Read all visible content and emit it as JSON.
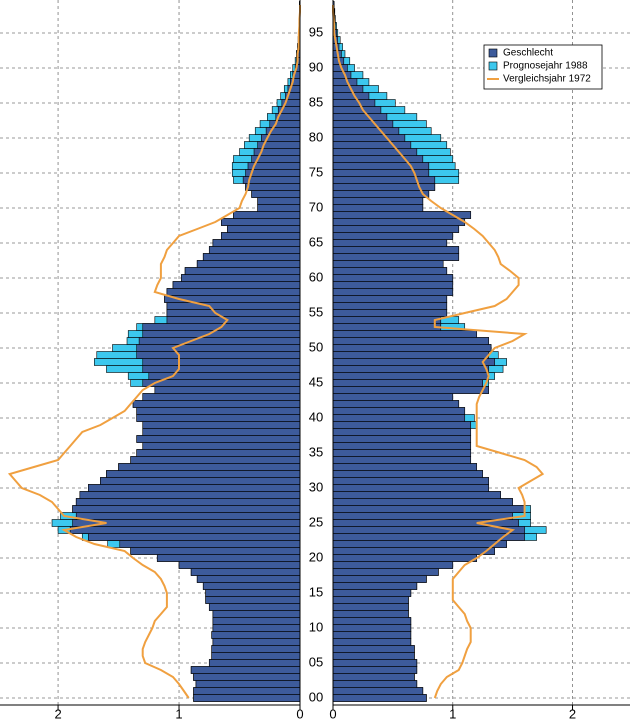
{
  "chart_data": {
    "type": "bar",
    "orientation": "horizontal",
    "legend": "upper right",
    "grid": true,
    "categories": [
      "00",
      null,
      null,
      null,
      null,
      "05",
      null,
      null,
      null,
      null,
      "10",
      null,
      null,
      null,
      null,
      "15",
      null,
      null,
      null,
      null,
      "20",
      null,
      null,
      null,
      null,
      "25",
      null,
      null,
      null,
      null,
      "30",
      null,
      null,
      null,
      null,
      "35",
      null,
      null,
      null,
      null,
      "40",
      null,
      null,
      null,
      null,
      "45",
      null,
      null,
      null,
      null,
      "50",
      null,
      null,
      null,
      null,
      "55",
      null,
      null,
      null,
      null,
      "60",
      null,
      null,
      null,
      null,
      "65",
      null,
      null,
      null,
      null,
      "70",
      null,
      null,
      null,
      null,
      "75",
      null,
      null,
      null,
      null,
      "80",
      null,
      null,
      null,
      null,
      "85",
      null,
      null,
      null,
      null,
      "90",
      null,
      null,
      null,
      null,
      "95",
      null,
      null,
      null,
      null
    ],
    "xlim_left": [
      2.48,
      0
    ],
    "xticks_left": [
      2,
      1,
      0
    ],
    "xlim_right": [
      0,
      2.48
    ],
    "xticks_right": [
      0,
      1,
      2
    ],
    "series": [
      {
        "name": "Prognosejahr 1988",
        "kind": "bar",
        "color": "#3cc8ee",
        "left": [
          0.88,
          0.88,
          0.86,
          0.88,
          0.9,
          0.75,
          0.73,
          0.73,
          0.72,
          0.73,
          0.72,
          0.72,
          0.72,
          0.75,
          0.78,
          0.78,
          0.8,
          0.85,
          0.9,
          1.0,
          1.18,
          1.4,
          1.59,
          1.8,
          2.0,
          2.05,
          1.98,
          1.88,
          1.85,
          1.82,
          1.75,
          1.65,
          1.6,
          1.5,
          1.4,
          1.35,
          1.3,
          1.35,
          1.3,
          1.3,
          1.35,
          1.35,
          1.38,
          1.3,
          1.2,
          1.4,
          1.42,
          1.6,
          1.7,
          1.68,
          1.55,
          1.43,
          1.42,
          1.35,
          1.2,
          1.1,
          1.1,
          1.12,
          1.1,
          1.05,
          0.98,
          0.95,
          0.85,
          0.8,
          0.75,
          0.72,
          0.65,
          0.6,
          0.65,
          0.55,
          0.35,
          0.35,
          0.4,
          0.45,
          0.55,
          0.56,
          0.56,
          0.55,
          0.5,
          0.46,
          0.42,
          0.37,
          0.33,
          0.27,
          0.23,
          0.19,
          0.16,
          0.13,
          0.1,
          0.08,
          0.06,
          0.04,
          0.03,
          0.02,
          0.015,
          0.01,
          0.01,
          0.005,
          0.005,
          0.005
        ],
        "right": [
          0.78,
          0.75,
          0.7,
          0.68,
          0.7,
          0.7,
          0.68,
          0.68,
          0.65,
          0.65,
          0.65,
          0.65,
          0.63,
          0.63,
          0.63,
          0.65,
          0.7,
          0.78,
          0.88,
          1.0,
          1.2,
          1.35,
          1.45,
          1.7,
          1.78,
          1.65,
          1.65,
          1.65,
          1.5,
          1.4,
          1.3,
          1.3,
          1.25,
          1.2,
          1.15,
          1.15,
          1.15,
          1.15,
          1.15,
          1.2,
          1.18,
          1.1,
          1.05,
          1.0,
          1.3,
          1.3,
          1.35,
          1.42,
          1.45,
          1.38,
          1.32,
          1.3,
          1.2,
          1.1,
          1.05,
          0.95,
          0.95,
          0.95,
          1.0,
          1.0,
          1.0,
          0.95,
          0.92,
          1.05,
          1.05,
          0.95,
          1.0,
          1.05,
          1.1,
          1.15,
          0.75,
          0.75,
          0.8,
          0.85,
          1.05,
          1.05,
          1.02,
          1.0,
          0.98,
          0.95,
          0.9,
          0.82,
          0.78,
          0.7,
          0.6,
          0.52,
          0.45,
          0.38,
          0.3,
          0.25,
          0.18,
          0.14,
          0.1,
          0.08,
          0.06,
          0.04,
          0.03,
          0.02,
          0.015,
          0.01
        ]
      },
      {
        "name": "Geschlecht",
        "kind": "bar",
        "color": "#3d5b9b",
        "left": [
          0.88,
          0.88,
          0.86,
          0.88,
          0.9,
          0.75,
          0.73,
          0.73,
          0.72,
          0.73,
          0.72,
          0.72,
          0.72,
          0.75,
          0.78,
          0.78,
          0.8,
          0.85,
          0.9,
          1.0,
          1.18,
          1.4,
          1.49,
          1.75,
          1.9,
          1.88,
          1.85,
          1.88,
          1.85,
          1.82,
          1.75,
          1.65,
          1.6,
          1.5,
          1.4,
          1.35,
          1.3,
          1.35,
          1.3,
          1.3,
          1.35,
          1.35,
          1.38,
          1.3,
          1.2,
          1.3,
          1.25,
          1.3,
          1.3,
          1.35,
          1.35,
          1.33,
          1.3,
          1.3,
          1.1,
          1.1,
          1.1,
          1.12,
          1.1,
          1.05,
          0.98,
          0.95,
          0.85,
          0.8,
          0.75,
          0.72,
          0.65,
          0.6,
          0.65,
          0.55,
          0.35,
          0.35,
          0.4,
          0.45,
          0.47,
          0.45,
          0.43,
          0.4,
          0.38,
          0.35,
          0.32,
          0.28,
          0.25,
          0.2,
          0.18,
          0.15,
          0.12,
          0.1,
          0.08,
          0.06,
          0.04,
          0.03,
          0.025,
          0.02,
          0.015,
          0.01,
          0.01,
          0.005,
          0.005,
          0.005
        ],
        "right": [
          0.78,
          0.75,
          0.7,
          0.68,
          0.7,
          0.7,
          0.68,
          0.68,
          0.65,
          0.65,
          0.65,
          0.65,
          0.63,
          0.63,
          0.63,
          0.65,
          0.7,
          0.78,
          0.88,
          1.0,
          1.2,
          1.35,
          1.45,
          1.6,
          1.6,
          1.55,
          1.5,
          1.6,
          1.5,
          1.4,
          1.3,
          1.3,
          1.25,
          1.2,
          1.15,
          1.15,
          1.15,
          1.15,
          1.15,
          1.15,
          1.1,
          1.1,
          1.05,
          1.0,
          1.3,
          1.25,
          1.3,
          1.3,
          1.35,
          1.3,
          1.32,
          1.3,
          1.2,
          0.9,
          0.9,
          0.95,
          0.95,
          0.95,
          1.0,
          1.0,
          1.0,
          0.95,
          0.92,
          1.05,
          1.05,
          0.95,
          1.0,
          1.05,
          1.1,
          1.15,
          0.75,
          0.75,
          0.8,
          0.85,
          0.85,
          0.8,
          0.8,
          0.75,
          0.7,
          0.65,
          0.6,
          0.55,
          0.5,
          0.45,
          0.4,
          0.35,
          0.3,
          0.25,
          0.2,
          0.15,
          0.12,
          0.09,
          0.07,
          0.05,
          0.04,
          0.03,
          0.02,
          0.015,
          0.01,
          0.01
        ]
      },
      {
        "name": "Vergleichsjahr 1972",
        "kind": "line",
        "color": "#f0a040",
        "left": [
          0.92,
          0.96,
          1.0,
          1.05,
          1.15,
          1.28,
          1.3,
          1.3,
          1.28,
          1.25,
          1.22,
          1.2,
          1.15,
          1.1,
          1.1,
          1.1,
          1.12,
          1.15,
          1.2,
          1.3,
          1.38,
          1.45,
          1.7,
          1.85,
          1.95,
          1.6,
          1.95,
          2.0,
          2.05,
          2.15,
          2.3,
          2.35,
          2.4,
          2.2,
          2.0,
          1.95,
          1.9,
          1.85,
          1.8,
          1.65,
          1.55,
          1.45,
          1.4,
          1.35,
          1.3,
          1.2,
          1.05,
          1.0,
          1.0,
          1.0,
          1.05,
          0.9,
          0.75,
          0.65,
          0.6,
          0.7,
          0.75,
          1.0,
          1.2,
          1.18,
          1.15,
          1.15,
          1.15,
          1.12,
          1.1,
          1.05,
          1.0,
          0.85,
          0.7,
          0.6,
          0.5,
          0.48,
          0.45,
          0.43,
          0.42,
          0.4,
          0.38,
          0.35,
          0.32,
          0.3,
          0.27,
          0.24,
          0.2,
          0.18,
          0.15,
          0.12,
          0.1,
          0.08,
          0.06,
          0.05,
          0.03,
          0.02,
          0.02,
          0.01,
          0.01,
          0.01,
          0.005,
          0.005,
          0,
          0
        ],
        "right": [
          0.85,
          0.87,
          0.9,
          0.95,
          1.05,
          1.08,
          1.1,
          1.12,
          1.15,
          1.15,
          1.15,
          1.12,
          1.1,
          1.05,
          1.0,
          1.0,
          1.0,
          1.0,
          1.05,
          1.1,
          1.2,
          1.28,
          1.35,
          1.42,
          1.5,
          1.2,
          1.6,
          1.6,
          1.6,
          1.58,
          1.55,
          1.65,
          1.75,
          1.7,
          1.6,
          1.4,
          1.2,
          1.2,
          1.2,
          1.2,
          1.2,
          1.2,
          1.2,
          1.22,
          1.25,
          1.28,
          1.3,
          1.28,
          1.25,
          1.3,
          1.35,
          1.5,
          1.6,
          0.85,
          0.85,
          1.1,
          1.35,
          1.45,
          1.5,
          1.55,
          1.55,
          1.48,
          1.4,
          1.38,
          1.35,
          1.3,
          1.25,
          1.18,
          1.1,
          1.0,
          0.9,
          0.82,
          0.75,
          0.72,
          0.7,
          0.68,
          0.65,
          0.6,
          0.55,
          0.5,
          0.45,
          0.4,
          0.35,
          0.3,
          0.25,
          0.22,
          0.18,
          0.15,
          0.12,
          0.1,
          0.07,
          0.05,
          0.04,
          0.03,
          0.02,
          0.01,
          0.01,
          0.005,
          0,
          0
        ]
      }
    ]
  }
}
